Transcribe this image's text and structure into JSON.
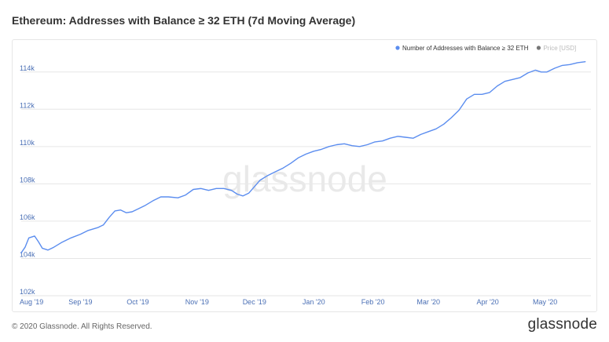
{
  "title": "Ethereum: Addresses with Balance ≥ 32 ETH (7d Moving Average)",
  "footer": {
    "copyright": "© 2020 Glassnode. All Rights Reserved.",
    "logo": "glassnode"
  },
  "watermark": "glassnode",
  "colors": {
    "series": "#5b8def",
    "price_legend": "#777777",
    "grid": "#e6e6e6",
    "axis_text": "#4a6fb5"
  },
  "chart_data": {
    "type": "line",
    "grid": true,
    "legend_position": "top-right",
    "legend": [
      {
        "label": "Number of Addresses with Balance ≥ 32 ETH",
        "color": "#5b8def"
      },
      {
        "label": "Price [USD]",
        "color": "#777777"
      }
    ],
    "ylim": [
      102000,
      115000
    ],
    "yticks": [
      {
        "value": 102000,
        "label": "102k"
      },
      {
        "value": 104000,
        "label": "104k"
      },
      {
        "value": 106000,
        "label": "106k"
      },
      {
        "value": 108000,
        "label": "108k"
      },
      {
        "value": 110000,
        "label": "110k"
      },
      {
        "value": 112000,
        "label": "112k"
      },
      {
        "value": 114000,
        "label": "114k"
      }
    ],
    "xlim": [
      "2019-08-01",
      "2020-05-25"
    ],
    "xticks": [
      {
        "date": "2019-08-01",
        "label": "Aug '19"
      },
      {
        "date": "2019-09-01",
        "label": "Sep '19"
      },
      {
        "date": "2019-10-01",
        "label": "Oct '19"
      },
      {
        "date": "2019-11-01",
        "label": "Nov '19"
      },
      {
        "date": "2019-12-01",
        "label": "Dec '19"
      },
      {
        "date": "2020-01-01",
        "label": "Jan '20"
      },
      {
        "date": "2020-02-01",
        "label": "Feb '20"
      },
      {
        "date": "2020-03-01",
        "label": "Mar '20"
      },
      {
        "date": "2020-04-01",
        "label": "Apr '20"
      },
      {
        "date": "2020-05-01",
        "label": "May '20"
      }
    ],
    "series": [
      {
        "name": "Number of Addresses with Balance ≥ 32 ETH",
        "points": [
          [
            "2019-08-01",
            104300
          ],
          [
            "2019-08-03",
            104600
          ],
          [
            "2019-08-05",
            105100
          ],
          [
            "2019-08-08",
            105200
          ],
          [
            "2019-08-10",
            104900
          ],
          [
            "2019-08-12",
            104550
          ],
          [
            "2019-08-15",
            104450
          ],
          [
            "2019-08-18",
            104600
          ],
          [
            "2019-08-22",
            104850
          ],
          [
            "2019-08-27",
            105100
          ],
          [
            "2019-09-01",
            105300
          ],
          [
            "2019-09-05",
            105500
          ],
          [
            "2019-09-10",
            105650
          ],
          [
            "2019-09-13",
            105800
          ],
          [
            "2019-09-16",
            106200
          ],
          [
            "2019-09-19",
            106550
          ],
          [
            "2019-09-22",
            106600
          ],
          [
            "2019-09-25",
            106450
          ],
          [
            "2019-09-28",
            106500
          ],
          [
            "2019-10-01",
            106650
          ],
          [
            "2019-10-05",
            106850
          ],
          [
            "2019-10-09",
            107100
          ],
          [
            "2019-10-13",
            107300
          ],
          [
            "2019-10-17",
            107300
          ],
          [
            "2019-10-22",
            107250
          ],
          [
            "2019-10-26",
            107400
          ],
          [
            "2019-10-30",
            107700
          ],
          [
            "2019-11-03",
            107750
          ],
          [
            "2019-11-07",
            107650
          ],
          [
            "2019-11-11",
            107750
          ],
          [
            "2019-11-15",
            107750
          ],
          [
            "2019-11-19",
            107650
          ],
          [
            "2019-11-22",
            107450
          ],
          [
            "2019-11-25",
            107350
          ],
          [
            "2019-11-28",
            107500
          ],
          [
            "2019-12-01",
            107850
          ],
          [
            "2019-12-04",
            108200
          ],
          [
            "2019-12-08",
            108450
          ],
          [
            "2019-12-12",
            108650
          ],
          [
            "2019-12-16",
            108850
          ],
          [
            "2019-12-20",
            109100
          ],
          [
            "2019-12-24",
            109400
          ],
          [
            "2019-12-28",
            109600
          ],
          [
            "2020-01-01",
            109750
          ],
          [
            "2020-01-05",
            109850
          ],
          [
            "2020-01-09",
            110000
          ],
          [
            "2020-01-13",
            110100
          ],
          [
            "2020-01-17",
            110150
          ],
          [
            "2020-01-21",
            110050
          ],
          [
            "2020-01-25",
            110000
          ],
          [
            "2020-01-29",
            110100
          ],
          [
            "2020-02-02",
            110250
          ],
          [
            "2020-02-06",
            110300
          ],
          [
            "2020-02-10",
            110450
          ],
          [
            "2020-02-14",
            110550
          ],
          [
            "2020-02-18",
            110500
          ],
          [
            "2020-02-22",
            110450
          ],
          [
            "2020-02-26",
            110650
          ],
          [
            "2020-03-01",
            110800
          ],
          [
            "2020-03-05",
            110950
          ],
          [
            "2020-03-09",
            111200
          ],
          [
            "2020-03-13",
            111550
          ],
          [
            "2020-03-17",
            111950
          ],
          [
            "2020-03-21",
            112550
          ],
          [
            "2020-03-25",
            112800
          ],
          [
            "2020-03-29",
            112800
          ],
          [
            "2020-04-02",
            112900
          ],
          [
            "2020-04-06",
            113250
          ],
          [
            "2020-04-10",
            113500
          ],
          [
            "2020-04-14",
            113600
          ],
          [
            "2020-04-18",
            113700
          ],
          [
            "2020-04-22",
            113950
          ],
          [
            "2020-04-26",
            114100
          ],
          [
            "2020-04-29",
            114000
          ],
          [
            "2020-05-02",
            114000
          ],
          [
            "2020-05-06",
            114200
          ],
          [
            "2020-05-10",
            114350
          ],
          [
            "2020-05-14",
            114400
          ],
          [
            "2020-05-18",
            114500
          ],
          [
            "2020-05-22",
            114550
          ]
        ]
      }
    ]
  }
}
